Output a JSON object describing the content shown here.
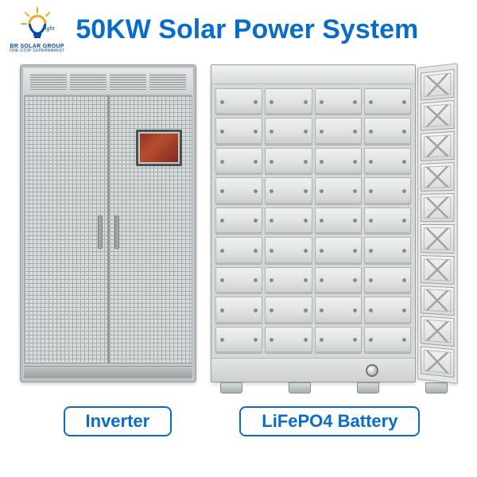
{
  "header": {
    "title": "50KW Solar Power System",
    "title_color": "#0a6cc9",
    "title_fontsize": 34
  },
  "logo": {
    "brand": "BR SOLAR GROUP",
    "tagline": "ONE-STOP SUPERMARKET",
    "word": "light",
    "bulb_accent": "#f5a623",
    "bulb_base": "#0a4aa6"
  },
  "products": {
    "inverter": {
      "label": "Inverter",
      "cabinet_color": "#cfd2d4",
      "screen_color": "#8a3020"
    },
    "battery": {
      "label": "LiFePO4 Battery",
      "rows": 9,
      "cols": 4,
      "side_rows": 10,
      "cell_color": "#dfe2e3",
      "frame_color": "#e2e4e5"
    }
  },
  "label_style": {
    "border_color": "#0a6cc9",
    "text_color": "#0a6cc9",
    "fontsize": 22
  }
}
